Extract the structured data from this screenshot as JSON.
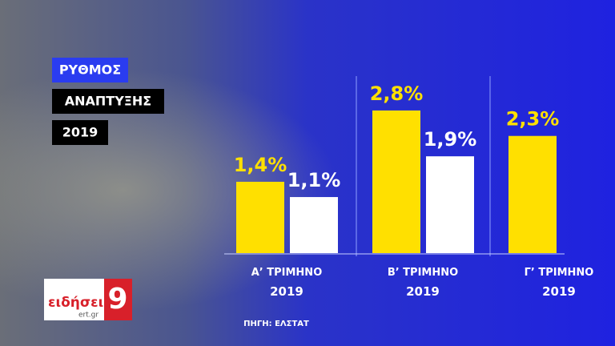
{
  "chart_data": {
    "type": "bar",
    "title_lines": [
      "ΡΥΘΜΟΣ",
      "ΑΝΑΠΤΥΞΗΣ",
      "2019"
    ],
    "categories": [
      "Α’ ΤΡΙΜΗΝΟ 2019",
      "Β’ ΤΡΙΜΗΝΟ 2019",
      "Γ’ ΤΡΙΜΗΝΟ 2019"
    ],
    "series": [
      {
        "color": "#ffe000",
        "values": [
          1.4,
          2.8,
          2.3
        ],
        "value_labels": [
          "1,4%",
          "2,8%",
          "2,3%"
        ]
      },
      {
        "color": "#ffffff",
        "values": [
          1.1,
          1.9,
          null
        ],
        "value_labels": [
          "1,1%",
          "1,9%",
          null
        ]
      }
    ],
    "source": "ΠΗΓΗ: ΕΛΣΤΑΤ",
    "logo": {
      "name": "ειδήσεις",
      "site": "ert.gr",
      "channel": "9"
    }
  }
}
